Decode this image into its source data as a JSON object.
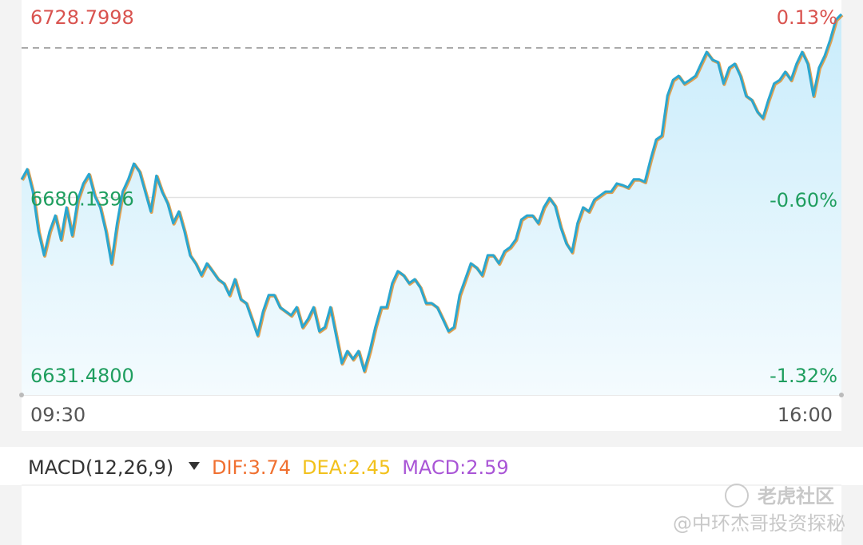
{
  "chart_data": {
    "type": "line",
    "categories": [
      "09:30",
      null,
      null,
      null,
      null,
      null,
      null,
      null,
      null,
      null,
      null,
      null,
      null,
      null,
      null,
      null,
      null,
      null,
      null,
      null,
      null,
      null,
      null,
      null,
      null,
      null,
      null,
      null,
      null,
      null,
      null,
      null,
      null,
      null,
      null,
      null,
      null,
      null,
      null,
      null,
      null,
      null,
      null,
      null,
      null,
      null,
      null,
      null,
      null,
      null,
      null,
      null,
      null,
      null,
      null,
      null,
      null,
      null,
      null,
      null,
      null,
      null,
      null,
      null,
      null,
      null,
      null,
      null,
      null,
      null,
      null,
      null,
      null,
      null,
      null,
      null,
      null,
      null,
      null,
      null,
      null,
      null,
      null,
      null,
      null,
      null,
      null,
      null,
      null,
      null,
      null,
      null,
      null,
      null,
      null,
      null,
      null,
      null,
      null,
      null,
      null,
      null,
      null,
      null,
      null,
      null,
      null,
      null,
      null,
      null,
      null,
      null,
      null,
      null,
      null,
      null,
      null,
      null,
      null,
      null,
      null,
      null,
      null,
      null,
      null,
      null,
      null,
      null,
      null,
      null,
      null,
      null,
      null,
      null,
      null,
      null,
      null,
      null,
      null,
      null,
      null,
      null,
      null,
      null,
      null,
      null,
      "16:00"
    ],
    "series": [
      {
        "color": "#2aa6cf",
        "values": [
          6684.6,
          6687.1,
          6681.6,
          6671.8,
          6665.9,
          6671.8,
          6675.7,
          6669.8,
          6677.7,
          6670.8,
          6679.6,
          6683.6,
          6685.9,
          6680.6,
          6677.7,
          6671.8,
          6663.9,
          6673.8,
          6681.6,
          6684.6,
          6688.5,
          6686.5,
          6681.6,
          6676.7,
          6685.5,
          6681.6,
          6678.7,
          6673.8,
          6676.7,
          6671.8,
          6665.9,
          6663.9,
          6661.0,
          6663.9,
          6662.0,
          6660.0,
          6659.0,
          6656.1,
          6660.0,
          6655.1,
          6654.1,
          6650.2,
          6646.2,
          6652.1,
          6656.1,
          6656.1,
          6653.1,
          6652.1,
          6651.1,
          6653.1,
          6648.2,
          6650.2,
          6653.1,
          6647.2,
          6648.2,
          6653.1,
          6646.2,
          6639.3,
          6642.3,
          6640.3,
          6642.3,
          6637.4,
          6642.3,
          6648.2,
          6653.1,
          6653.1,
          6659.0,
          6662.0,
          6661.0,
          6659.0,
          6660.0,
          6658.0,
          6654.1,
          6654.1,
          6653.1,
          6650.2,
          6647.2,
          6648.2,
          6656.1,
          6660.0,
          6663.9,
          6662.9,
          6661.0,
          6665.9,
          6665.9,
          6663.9,
          6666.9,
          6667.9,
          6669.8,
          6674.7,
          6675.7,
          6675.7,
          6673.8,
          6677.7,
          6680.0,
          6678.1,
          6672.8,
          6668.8,
          6666.7,
          6673.8,
          6677.7,
          6676.7,
          6679.6,
          6680.6,
          6681.6,
          6681.6,
          6683.6,
          6683.2,
          6682.6,
          6684.6,
          6684.6,
          6684.0,
          6689.5,
          6694.4,
          6695.4,
          6705.2,
          6709.1,
          6710.1,
          6708.2,
          6709.1,
          6710.1,
          6713.1,
          6716.0,
          6714.1,
          6713.5,
          6708.2,
          6712.1,
          6713.1,
          6710.1,
          6705.2,
          6704.2,
          6701.3,
          6699.7,
          6704.2,
          6708.2,
          6709.1,
          6711.1,
          6709.1,
          6713.1,
          6716.0,
          6713.1,
          6705.2,
          6712.1,
          6715.0,
          6719.0,
          6723.9,
          6725.3
        ]
      }
    ],
    "ylim": [
      6631.48,
      6728.7998
    ],
    "yticks": [
      {
        "value": 6631.48,
        "label": "6631.4800"
      },
      6680.1396,
      6728.7998
    ],
    "y2lim": [
      -1.32,
      0.13
    ],
    "y2ticks": [
      {
        "value": -1.32,
        "label": "-1.32%"
      },
      {
        "value": -0.6,
        "label": "-0.60%"
      },
      {
        "value": 0.13,
        "label": "0.13%"
      }
    ],
    "up_color": "#d9534f",
    "down_color": "#1f9e5f",
    "area": true
  },
  "macd_header": {
    "title": "MACD(12,26,9)",
    "indicators": [
      {
        "label": "DIF:3.74",
        "color": "#f07030"
      },
      {
        "label": "DEA:2.45",
        "color": "#f2c11c"
      },
      {
        "label": "MACD:2.59",
        "color": "#a955d6"
      }
    ]
  },
  "watermark": {
    "brand": "老虎社区",
    "author": "@中环杰哥投资探秘"
  }
}
